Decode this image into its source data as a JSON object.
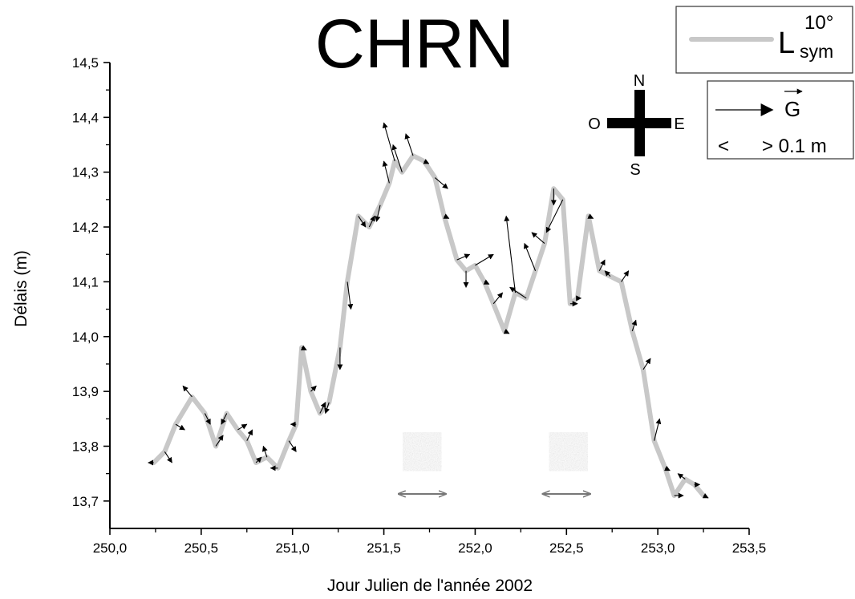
{
  "chart_data": {
    "type": "line",
    "title": "CHRN",
    "xlabel": "Jour Julien de l'année 2002",
    "ylabel": "Délais (m)",
    "xlim": [
      250.0,
      253.5
    ],
    "ylim": [
      13.65,
      14.5
    ],
    "x_ticks": [
      "250,0",
      "250,5",
      "251,0",
      "251,5",
      "252,0",
      "252,5",
      "253,0",
      "253,5"
    ],
    "x_tick_values": [
      250.0,
      250.5,
      251.0,
      251.5,
      252.0,
      252.5,
      253.0,
      253.5
    ],
    "y_ticks": [
      "13,7",
      "13,8",
      "13,9",
      "14,0",
      "14,1",
      "14,2",
      "14,3",
      "14,4",
      "14,5"
    ],
    "y_tick_values": [
      13.7,
      13.8,
      13.9,
      14.0,
      14.1,
      14.2,
      14.3,
      14.4,
      14.5
    ],
    "grid": false,
    "line_color": "#c8c8c8",
    "arrow_color": "#000000",
    "series": [
      {
        "name": "L_sym 10°",
        "x": [
          250.24,
          250.3,
          250.36,
          250.45,
          250.52,
          250.58,
          250.64,
          250.7,
          250.75,
          250.8,
          250.86,
          250.92,
          250.98,
          251.02,
          251.05,
          251.1,
          251.15,
          251.2,
          251.26,
          251.3,
          251.36,
          251.42,
          251.48,
          251.53,
          251.56,
          251.6,
          251.66,
          251.72,
          251.78,
          251.83,
          251.9,
          251.95,
          252.0,
          252.05,
          252.1,
          252.16,
          252.22,
          252.28,
          252.33,
          252.38,
          252.43,
          252.48,
          252.52,
          252.56,
          252.62,
          252.68,
          252.74,
          252.8,
          252.86,
          252.92,
          252.98,
          253.04,
          253.09,
          253.15,
          253.2,
          253.25
        ],
        "y": [
          13.77,
          13.79,
          13.84,
          13.89,
          13.86,
          13.8,
          13.86,
          13.83,
          13.81,
          13.77,
          13.78,
          13.76,
          13.81,
          13.84,
          13.98,
          13.9,
          13.86,
          13.88,
          13.98,
          14.1,
          14.22,
          14.2,
          14.24,
          14.28,
          14.32,
          14.3,
          14.33,
          14.32,
          14.29,
          14.22,
          14.14,
          14.12,
          14.13,
          14.1,
          14.06,
          14.01,
          14.08,
          14.07,
          14.12,
          14.17,
          14.27,
          14.25,
          14.06,
          14.07,
          14.22,
          14.12,
          14.11,
          14.1,
          14.01,
          13.94,
          13.81,
          13.76,
          13.71,
          13.74,
          13.73,
          13.71
        ],
        "arrows_dx": [
          -0.03,
          0.04,
          0.05,
          -0.05,
          0.03,
          0.04,
          -0.03,
          0.05,
          0.03,
          0.03,
          -0.02,
          -0.04,
          0.04,
          -0.03,
          0.0,
          0.03,
          0.03,
          -0.02,
          0.0,
          0.02,
          0.04,
          0.03,
          -0.02,
          -0.03,
          -0.06,
          -0.05,
          -0.04,
          0.0,
          0.07,
          0.0,
          0.07,
          0.0,
          0.1,
          0.0,
          0.05,
          0.0,
          -0.05,
          -0.09,
          -0.06,
          -0.07,
          0.0,
          -0.09,
          0.04,
          0.02,
          0.0,
          0.03,
          -0.03,
          0.04,
          0.02,
          0.04,
          0.03,
          0.0,
          0.05,
          -0.04,
          0.03,
          0.0
        ],
        "arrows_dy": [
          0.0,
          -0.02,
          -0.01,
          0.02,
          -0.02,
          0.02,
          -0.02,
          0.01,
          0.02,
          0.01,
          0.02,
          0.0,
          -0.02,
          0.0,
          0.0,
          0.01,
          0.02,
          -0.02,
          -0.04,
          -0.05,
          -0.02,
          0.02,
          -0.03,
          0.04,
          0.07,
          0.05,
          0.04,
          0.0,
          -0.02,
          0.0,
          0.01,
          -0.03,
          0.02,
          0.0,
          0.02,
          0.0,
          0.14,
          0.02,
          0.05,
          0.02,
          -0.03,
          -0.06,
          0.0,
          0.0,
          0.0,
          0.02,
          0.01,
          0.02,
          0.02,
          0.02,
          0.04,
          0.0,
          0.0,
          0.01,
          0.0,
          0.0
        ]
      }
    ],
    "annotation_arrows": [
      {
        "x_start": 251.58,
        "x_end": 251.84,
        "y": 13.713
      },
      {
        "x_start": 252.37,
        "x_end": 252.63,
        "y": 13.713
      }
    ],
    "blobs": [
      {
        "x": 251.71,
        "y": 13.79
      },
      {
        "x": 252.51,
        "y": 13.79
      }
    ]
  },
  "legend": {
    "line_label": "L",
    "line_sub": "sym",
    "line_sup": "10°",
    "vector_label": "G",
    "scale_left": "<",
    "scale_right": "> 0.1 m"
  },
  "compass": {
    "north": "N",
    "south": "S",
    "east": "E",
    "west": "O"
  }
}
